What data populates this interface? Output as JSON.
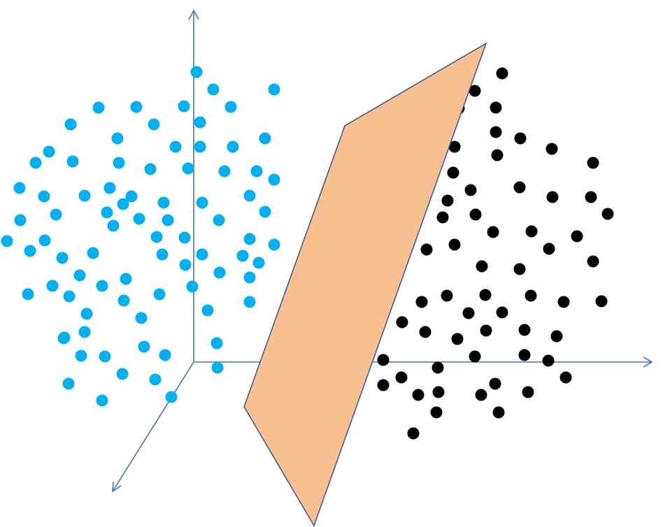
{
  "colors": {
    "axis": "#4a73b3",
    "class_a": "#00b0f0",
    "class_b": "#000000",
    "plane_fill": "#f8c090",
    "plane_stroke": "#3f5f8f",
    "background": "#ffffff"
  },
  "elements": {
    "axes": [
      "y-axis",
      "x-axis",
      "z-axis"
    ],
    "separator": "hyperplane",
    "classes": [
      "class-a",
      "class-b"
    ]
  },
  "class_a_count": 88,
  "class_b_count": 80
}
